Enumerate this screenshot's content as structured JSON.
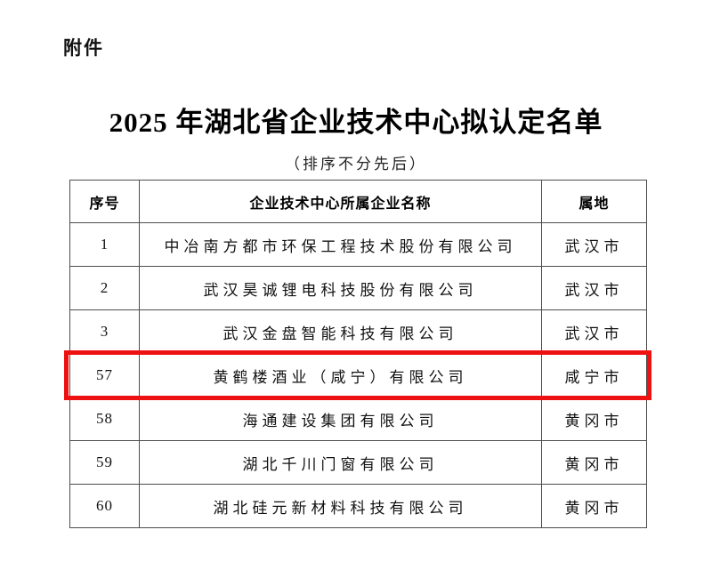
{
  "page": {
    "attachment_label": "附件",
    "title": "2025 年湖北省企业技术中心拟认定名单",
    "subtitle": "（排序不分先后）"
  },
  "table": {
    "headers": {
      "no": "序号",
      "company": "企业技术中心所属企业名称",
      "city": "属地"
    },
    "rows": [
      {
        "no": "1",
        "company": "中冶南方都市环保工程技术股份有限公司",
        "city": "武汉市",
        "highlighted": false
      },
      {
        "no": "2",
        "company": "武汉昊诚锂电科技股份有限公司",
        "city": "武汉市",
        "highlighted": false
      },
      {
        "no": "3",
        "company": "武汉金盘智能科技有限公司",
        "city": "武汉市",
        "highlighted": false
      },
      {
        "no": "57",
        "company": "黄鹤楼酒业（咸宁）有限公司",
        "city": "咸宁市",
        "highlighted": true
      },
      {
        "no": "58",
        "company": "海通建设集团有限公司",
        "city": "黄冈市",
        "highlighted": false
      },
      {
        "no": "59",
        "company": "湖北千川门窗有限公司",
        "city": "黄冈市",
        "highlighted": false
      },
      {
        "no": "60",
        "company": "湖北硅元新材料科技有限公司",
        "city": "黄冈市",
        "highlighted": false
      }
    ],
    "highlight_color": "#ee1111"
  }
}
